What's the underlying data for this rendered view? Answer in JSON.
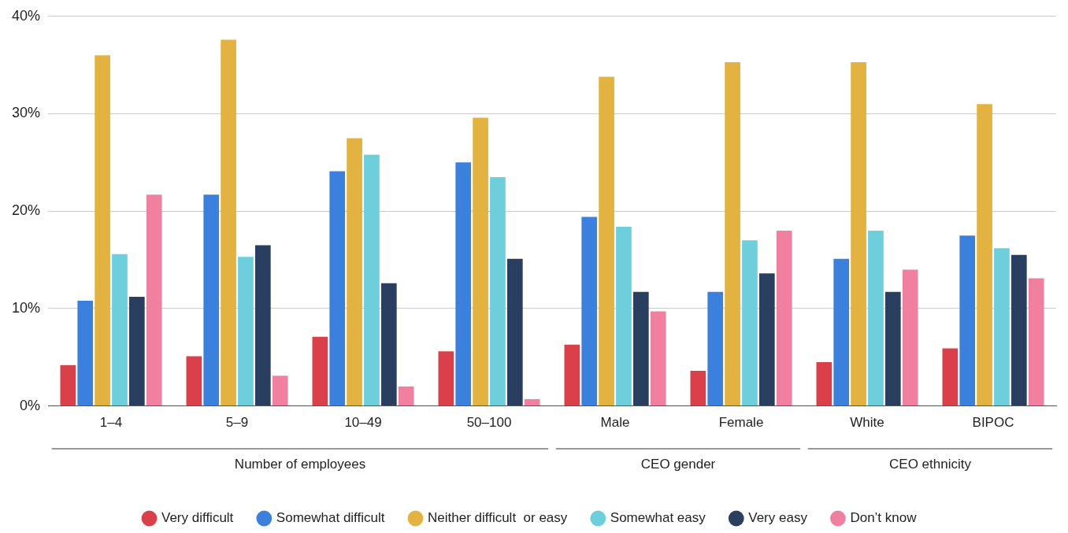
{
  "chart_data": {
    "type": "bar",
    "categories": [
      "1–4",
      "5–9",
      "10–49",
      "50–100",
      "Male",
      "Female",
      "White",
      "BIPOC"
    ],
    "series": [
      {
        "name": "Very difficult",
        "color": "#d9404a",
        "values": [
          4.2,
          5.1,
          7.1,
          5.6,
          6.3,
          3.6,
          4.5,
          5.9
        ]
      },
      {
        "name": "Somewhat difficult",
        "color": "#3a80dc",
        "values": [
          10.8,
          21.7,
          24.1,
          25.0,
          19.4,
          11.7,
          15.1,
          17.5
        ]
      },
      {
        "name": "Neither difficult  or easy",
        "color": "#e3b341",
        "values": [
          36.0,
          37.6,
          27.5,
          29.6,
          33.8,
          35.3,
          35.3,
          31.0
        ]
      },
      {
        "name": "Somewhat easy",
        "color": "#6dcfdb",
        "values": [
          15.6,
          15.3,
          25.8,
          23.5,
          18.4,
          17.0,
          18.0,
          16.2
        ]
      },
      {
        "name": "Very easy",
        "color": "#2a3f5f",
        "values": [
          11.2,
          16.5,
          12.6,
          15.1,
          11.7,
          13.6,
          11.7,
          15.5
        ]
      },
      {
        "name": "Don’t know",
        "color": "#f080a0",
        "values": [
          21.7,
          3.1,
          2.0,
          0.7,
          9.7,
          18.0,
          14.0,
          13.1
        ]
      }
    ],
    "ylim": [
      0,
      40
    ],
    "yticks": [
      {
        "value": 0,
        "label": "0%"
      },
      {
        "value": 10,
        "label": "10%"
      },
      {
        "value": 20,
        "label": "20%"
      },
      {
        "value": 30,
        "label": "30%"
      },
      {
        "value": 40,
        "label": "40%"
      }
    ],
    "grid": "y",
    "legend": "bottom",
    "annotations": [
      "Number of employees",
      "CEO gender",
      "CEO ethnicity"
    ]
  }
}
